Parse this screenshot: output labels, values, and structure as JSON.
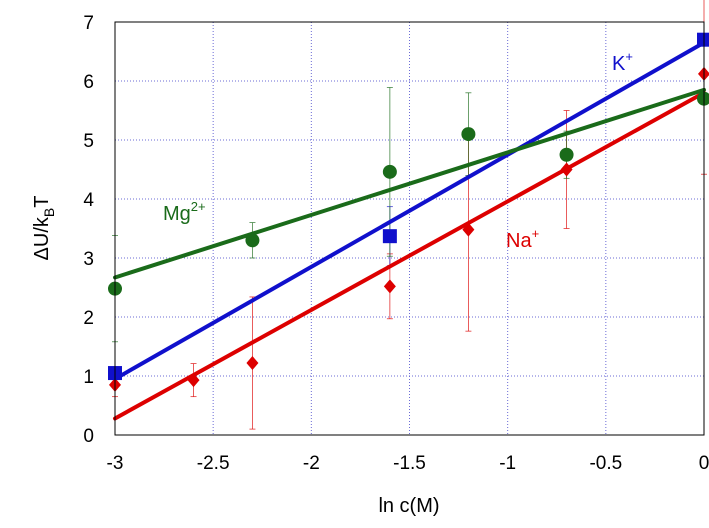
{
  "chart_data": {
    "type": "scatter",
    "xlabel": "ln c(M)",
    "ylabel": {
      "main": "ΔU/k",
      "sub": "B",
      "tail": "T"
    },
    "xlim": [
      -3,
      0
    ],
    "ylim": [
      0,
      7
    ],
    "xticks": [
      "-3",
      "-2.5",
      "-2",
      "-1.5",
      "-1",
      "-0.5",
      "0"
    ],
    "yticks": [
      "0",
      "1",
      "2",
      "3",
      "4",
      "5",
      "6",
      "7"
    ],
    "grid": true,
    "series": [
      {
        "name": "Na",
        "superscript": "+",
        "color": "#dd0000",
        "marker": "diamond",
        "points": [
          {
            "x": -3.0,
            "y": 0.85,
            "err": 0.2
          },
          {
            "x": -2.6,
            "y": 0.93,
            "err": 0.28
          },
          {
            "x": -2.3,
            "y": 1.22,
            "err": 1.12
          },
          {
            "x": -1.6,
            "y": 2.52,
            "err": 0.55
          },
          {
            "x": -1.2,
            "y": 3.48,
            "err": 1.72
          },
          {
            "x": -0.7,
            "y": 4.5,
            "err": 1.0
          },
          {
            "x": 0.0,
            "y": 6.12,
            "err": 1.7
          }
        ],
        "fit": [
          [
            -3.0,
            0.28
          ],
          [
            0.0,
            5.8
          ]
        ]
      },
      {
        "name": "K",
        "superscript": "+",
        "color": "#1010cc",
        "marker": "square",
        "points": [
          {
            "x": -3.0,
            "y": 1.05,
            "err": 0.0
          },
          {
            "x": -1.6,
            "y": 3.37,
            "err": 0.5
          },
          {
            "x": 0.0,
            "y": 6.7,
            "err": 0.0
          }
        ],
        "fit": [
          [
            -3.0,
            0.95
          ],
          [
            0.0,
            6.65
          ]
        ]
      },
      {
        "name": "Mg",
        "superscript": "2+",
        "color": "#1a6b1a",
        "marker": "circle",
        "points": [
          {
            "x": -3.0,
            "y": 2.48,
            "err": 0.9
          },
          {
            "x": -2.3,
            "y": 3.3,
            "err": 0.3
          },
          {
            "x": -1.6,
            "y": 4.46,
            "err": 1.43
          },
          {
            "x": -1.2,
            "y": 5.1,
            "err": 0.7
          },
          {
            "x": -0.7,
            "y": 4.75,
            "err": 0.4
          },
          {
            "x": 0.0,
            "y": 5.7,
            "err": 0.0
          }
        ],
        "fit": [
          [
            -3.0,
            2.67
          ],
          [
            0.0,
            5.85
          ]
        ]
      }
    ]
  }
}
